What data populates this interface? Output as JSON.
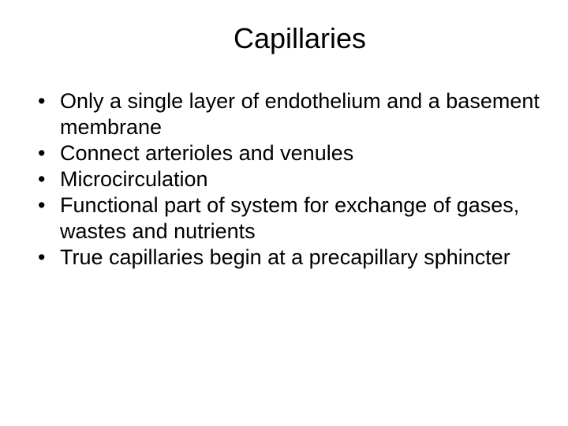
{
  "slide": {
    "title": "Capillaries",
    "title_fontsize": 36,
    "body_fontsize": 27,
    "background_color": "#ffffff",
    "text_color": "#000000",
    "font_family": "Arial",
    "bullets": [
      "Only a single layer of endothelium and a basement membrane",
      "Connect arterioles and venules",
      "Microcirculation",
      "Functional part of system for exchange of gases, wastes and nutrients",
      "True capillaries begin at a precapillary sphincter"
    ]
  }
}
